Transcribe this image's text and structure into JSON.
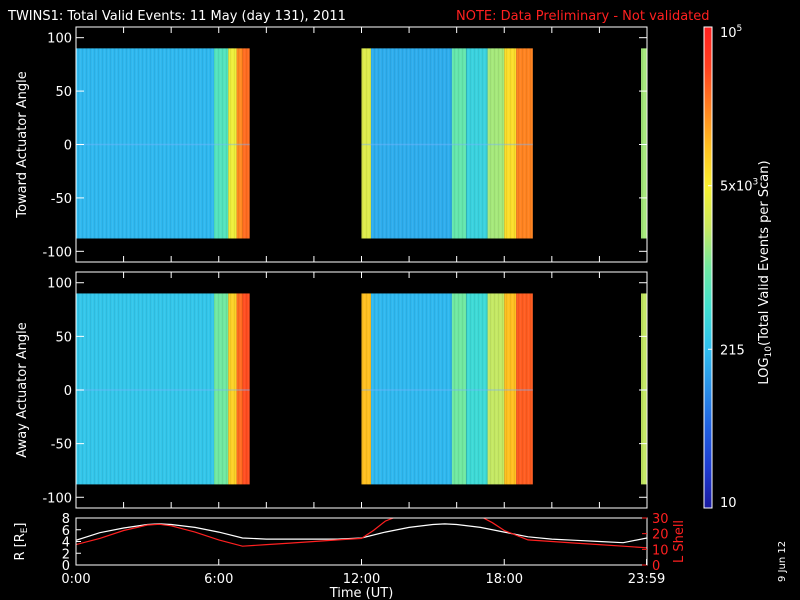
{
  "title": {
    "main": "TWINS1: Total Valid Events: 11 May (day 131), 2011",
    "note": "NOTE: Data Preliminary - Not validated"
  },
  "chart_data": [
    {
      "type": "heatmap",
      "ylabel": "Toward Actuator Angle",
      "ylim": [
        -110,
        110
      ],
      "yticks": [
        "100",
        "50",
        "0",
        "-50",
        "-100"
      ],
      "ytick_values": [
        100,
        50,
        0,
        -50,
        -100
      ],
      "angle_range": [
        -88,
        90
      ],
      "xlim_hours": [
        0,
        24
      ],
      "data_blocks": [
        {
          "start_hour": 0.0,
          "end_hour": 7.3
        },
        {
          "start_hour": 12.0,
          "end_hour": 19.2
        },
        {
          "start_hour": 23.75,
          "end_hour": 24.0
        }
      ],
      "band_levels": [
        {
          "start_hour": 0.0,
          "end_hour": 5.8,
          "log_level": 0.32
        },
        {
          "start_hour": 5.8,
          "end_hour": 6.4,
          "log_level": 0.45
        },
        {
          "start_hour": 6.4,
          "end_hour": 6.75,
          "log_level": 0.65
        },
        {
          "start_hour": 6.75,
          "end_hour": 7.0,
          "log_level": 0.82
        },
        {
          "start_hour": 7.0,
          "end_hour": 7.3,
          "log_level": 0.86
        },
        {
          "start_hour": 12.0,
          "end_hour": 12.4,
          "log_level": 0.62
        },
        {
          "start_hour": 12.4,
          "end_hour": 15.8,
          "log_level": 0.3
        },
        {
          "start_hour": 15.8,
          "end_hour": 16.4,
          "log_level": 0.48
        },
        {
          "start_hour": 16.4,
          "end_hour": 17.3,
          "log_level": 0.38
        },
        {
          "start_hour": 17.3,
          "end_hour": 18.0,
          "log_level": 0.55
        },
        {
          "start_hour": 18.0,
          "end_hour": 18.5,
          "log_level": 0.7
        },
        {
          "start_hour": 18.5,
          "end_hour": 19.2,
          "log_level": 0.83
        },
        {
          "start_hour": 23.75,
          "end_hour": 24.0,
          "log_level": 0.55
        }
      ]
    },
    {
      "type": "heatmap",
      "ylabel": "Away Actuator Angle",
      "ylim": [
        -110,
        110
      ],
      "yticks": [
        "100",
        "50",
        "0",
        "-50",
        "-100"
      ],
      "ytick_values": [
        100,
        50,
        0,
        -50,
        -100
      ],
      "angle_range": [
        -88,
        90
      ],
      "xlim_hours": [
        0,
        24
      ],
      "data_blocks": [
        {
          "start_hour": 0.0,
          "end_hour": 7.3
        },
        {
          "start_hour": 12.0,
          "end_hour": 19.2
        },
        {
          "start_hour": 23.75,
          "end_hour": 24.0
        }
      ],
      "band_levels": [
        {
          "start_hour": 0.0,
          "end_hour": 5.8,
          "log_level": 0.35
        },
        {
          "start_hour": 5.8,
          "end_hour": 6.4,
          "log_level": 0.5
        },
        {
          "start_hour": 6.4,
          "end_hour": 6.75,
          "log_level": 0.72
        },
        {
          "start_hour": 6.75,
          "end_hour": 7.0,
          "log_level": 0.86
        },
        {
          "start_hour": 7.0,
          "end_hour": 7.3,
          "log_level": 0.9
        },
        {
          "start_hour": 12.0,
          "end_hour": 12.4,
          "log_level": 0.75
        },
        {
          "start_hour": 12.4,
          "end_hour": 15.8,
          "log_level": 0.32
        },
        {
          "start_hour": 15.8,
          "end_hour": 16.4,
          "log_level": 0.5
        },
        {
          "start_hour": 16.4,
          "end_hour": 17.3,
          "log_level": 0.4
        },
        {
          "start_hour": 17.3,
          "end_hour": 18.0,
          "log_level": 0.58
        },
        {
          "start_hour": 18.0,
          "end_hour": 18.5,
          "log_level": 0.75
        },
        {
          "start_hour": 18.5,
          "end_hour": 19.2,
          "log_level": 0.88
        },
        {
          "start_hour": 23.75,
          "end_hour": 24.0,
          "log_level": 0.58
        }
      ]
    },
    {
      "type": "line",
      "ylabel": "R [R",
      "ylabel_sub": "E",
      "ylabel_close": "]",
      "y2label": "L Shell",
      "ylim": [
        0,
        8
      ],
      "yticks": [
        "8",
        "6",
        "4",
        "2",
        "0"
      ],
      "ytick_values": [
        8,
        6,
        4,
        2,
        0
      ],
      "y2lim": [
        0,
        30
      ],
      "y2ticks": [
        "30",
        "20",
        "10",
        "0"
      ],
      "y2tick_values": [
        30,
        20,
        10,
        0
      ],
      "xlim_hours": [
        0,
        24
      ],
      "xticks": [
        "0:00",
        "6:00",
        "12:00",
        "18:00",
        "23:59"
      ],
      "xtick_hours": [
        0,
        6,
        12,
        18,
        23.98
      ],
      "xlabel": "Time (UT)",
      "series": [
        {
          "name": "R",
          "color": "#ffffff",
          "x": [
            0,
            1,
            2,
            3,
            3.5,
            4,
            5,
            6,
            7,
            8,
            9,
            10,
            11,
            12,
            13,
            14,
            15,
            15.5,
            16,
            17,
            18,
            19,
            20,
            21,
            22,
            23,
            24
          ],
          "y": [
            4.2,
            5.5,
            6.3,
            6.9,
            7.0,
            6.9,
            6.4,
            5.6,
            4.6,
            4.4,
            4.4,
            4.4,
            4.4,
            4.6,
            5.6,
            6.4,
            6.9,
            7.0,
            6.9,
            6.4,
            5.6,
            4.8,
            4.4,
            4.2,
            4.0,
            3.8,
            4.6
          ]
        },
        {
          "name": "L",
          "color": "#ff2020",
          "x": [
            0,
            1,
            2,
            3,
            3.5,
            4,
            5,
            6,
            7,
            8,
            9,
            10,
            11,
            12,
            12.5,
            13,
            13.5,
            17,
            17.5,
            18,
            19,
            20,
            21,
            22,
            23,
            24
          ],
          "y": [
            13,
            17,
            22,
            25.5,
            26,
            25,
            21,
            16,
            12,
            13,
            14,
            15,
            16,
            17,
            22,
            28,
            31,
            31,
            27,
            22,
            16,
            15,
            14,
            13,
            12,
            11
          ]
        }
      ]
    }
  ],
  "colorbar": {
    "tick_labels": [
      "10",
      "215",
      "5x10",
      "10"
    ],
    "tick_sups": [
      "",
      "",
      "3",
      "5"
    ],
    "tick_fracs": [
      0.0,
      0.33,
      0.67,
      1.0
    ],
    "label_pre": "LOG",
    "label_sub": "10",
    "label_post": "(Total Valid  Events per Scan)",
    "stops": [
      "#1a1aa0",
      "#1e3cd0",
      "#2060e0",
      "#2a90e8",
      "#30c0f0",
      "#40e0d0",
      "#70e8a0",
      "#c8e860",
      "#f8f030",
      "#ffc020",
      "#ff8020",
      "#ff4020",
      "#ff2020"
    ]
  },
  "footer": {
    "date_stamp": "9 Jun 12"
  }
}
